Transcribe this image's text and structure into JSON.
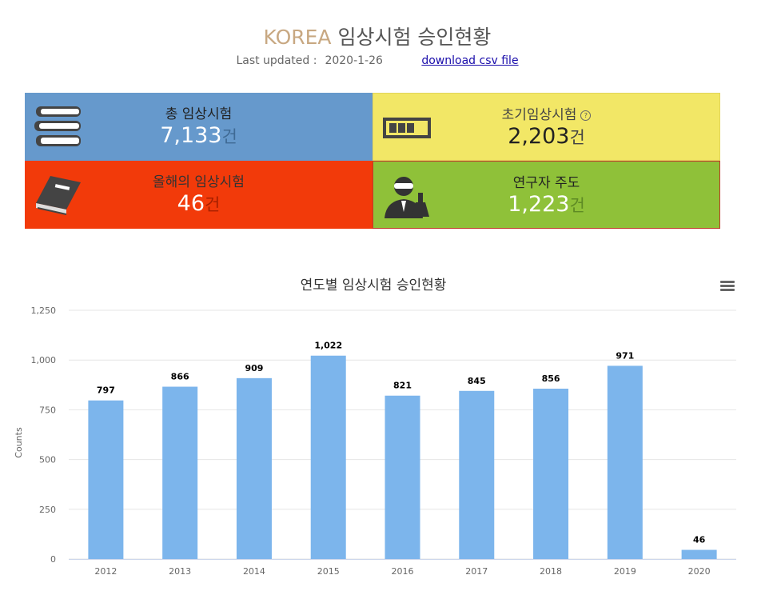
{
  "header": {
    "brand": "KOREA",
    "title": "임상시험 승인현황",
    "updated_label": "Last updated :",
    "updated_value": "2020-1-26",
    "download_link": "download csv file"
  },
  "stats": {
    "total": {
      "label": "총 임상시험",
      "value": "7,133",
      "unit": "건",
      "icon": "books-stack-icon"
    },
    "early": {
      "label": "초기임상시험",
      "help": "?",
      "value": "2,203",
      "unit": "건",
      "icon": "battery-icon"
    },
    "this_year": {
      "label": "올해의 임상시험",
      "value": "46",
      "unit": "건",
      "icon": "book-icon"
    },
    "investigator": {
      "label": "연구자 주도",
      "value": "1,223",
      "unit": "건",
      "icon": "scientist-icon"
    }
  },
  "colors": {
    "total": "#6699cc",
    "early": "#f2e766",
    "this_year": "#f23a0a",
    "investigator": "#8fc139",
    "bar": "#7cb5ec"
  },
  "chart_data": {
    "type": "bar",
    "title": "연도별 임상시험 승인현황",
    "ylabel": "Counts",
    "xlabel": "",
    "categories": [
      "2012",
      "2013",
      "2014",
      "2015",
      "2016",
      "2017",
      "2018",
      "2019",
      "2020"
    ],
    "values": [
      797,
      866,
      909,
      1022,
      821,
      845,
      856,
      971,
      46
    ],
    "data_labels": [
      "797",
      "866",
      "909",
      "1,022",
      "821",
      "845",
      "856",
      "971",
      "46"
    ],
    "ylim": [
      0,
      1250
    ],
    "yticks": [
      0,
      250,
      500,
      750,
      1000,
      1250
    ],
    "ytick_labels": [
      "0",
      "250",
      "500",
      "750",
      "1,000",
      "1,250"
    ],
    "grid": true,
    "legend": "none"
  }
}
